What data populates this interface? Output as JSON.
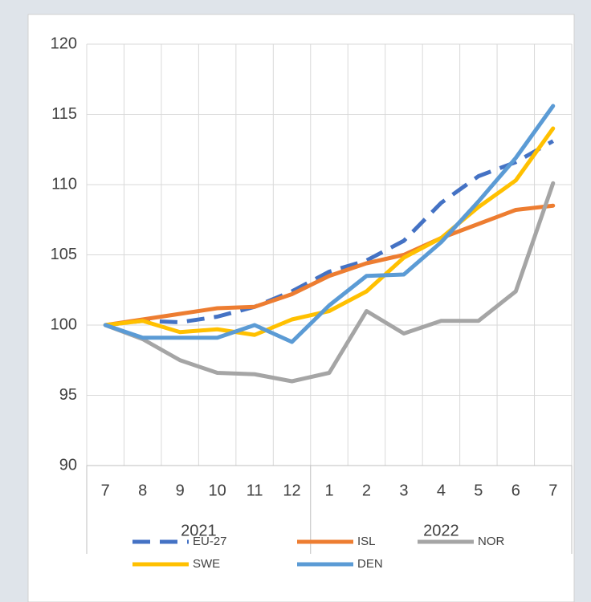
{
  "chart_data": {
    "type": "line",
    "categories": [
      "7",
      "8",
      "9",
      "10",
      "11",
      "12",
      "1",
      "2",
      "3",
      "4",
      "5",
      "6",
      "7"
    ],
    "groups": [
      {
        "label": "2021",
        "count": 6
      },
      {
        "label": "2022",
        "count": 7
      }
    ],
    "series": [
      {
        "name": "EU-27",
        "color": "#4472c4",
        "dashed": true,
        "values": [
          100,
          100.3,
          100.2,
          100.6,
          101.3,
          102.4,
          103.8,
          104.6,
          106.0,
          108.7,
          110.6,
          111.6,
          113.1
        ]
      },
      {
        "name": "ISL",
        "color": "#ed7d31",
        "values": [
          100,
          100.4,
          100.8,
          101.2,
          101.3,
          102.2,
          103.5,
          104.4,
          105.0,
          106.2,
          107.2,
          108.2,
          108.5
        ]
      },
      {
        "name": "NOR",
        "color": "#a5a5a5",
        "values": [
          100,
          99.0,
          97.5,
          96.6,
          96.5,
          96.0,
          96.6,
          101.0,
          99.4,
          100.3,
          100.3,
          102.4,
          110.1
        ]
      },
      {
        "name": "SWE",
        "color": "#ffc000",
        "values": [
          100,
          100.3,
          99.5,
          99.7,
          99.3,
          100.4,
          101.0,
          102.4,
          104.8,
          106.2,
          108.4,
          110.3,
          114.0
        ]
      },
      {
        "name": "DEN",
        "color": "#5b9bd5",
        "values": [
          100,
          99.1,
          99.1,
          99.1,
          100.0,
          98.8,
          101.4,
          103.5,
          103.6,
          105.9,
          108.8,
          111.9,
          115.6
        ]
      }
    ],
    "ylim": [
      90,
      120
    ],
    "yticks": [
      90,
      95,
      100,
      105,
      110,
      115,
      120
    ],
    "grid": true
  }
}
